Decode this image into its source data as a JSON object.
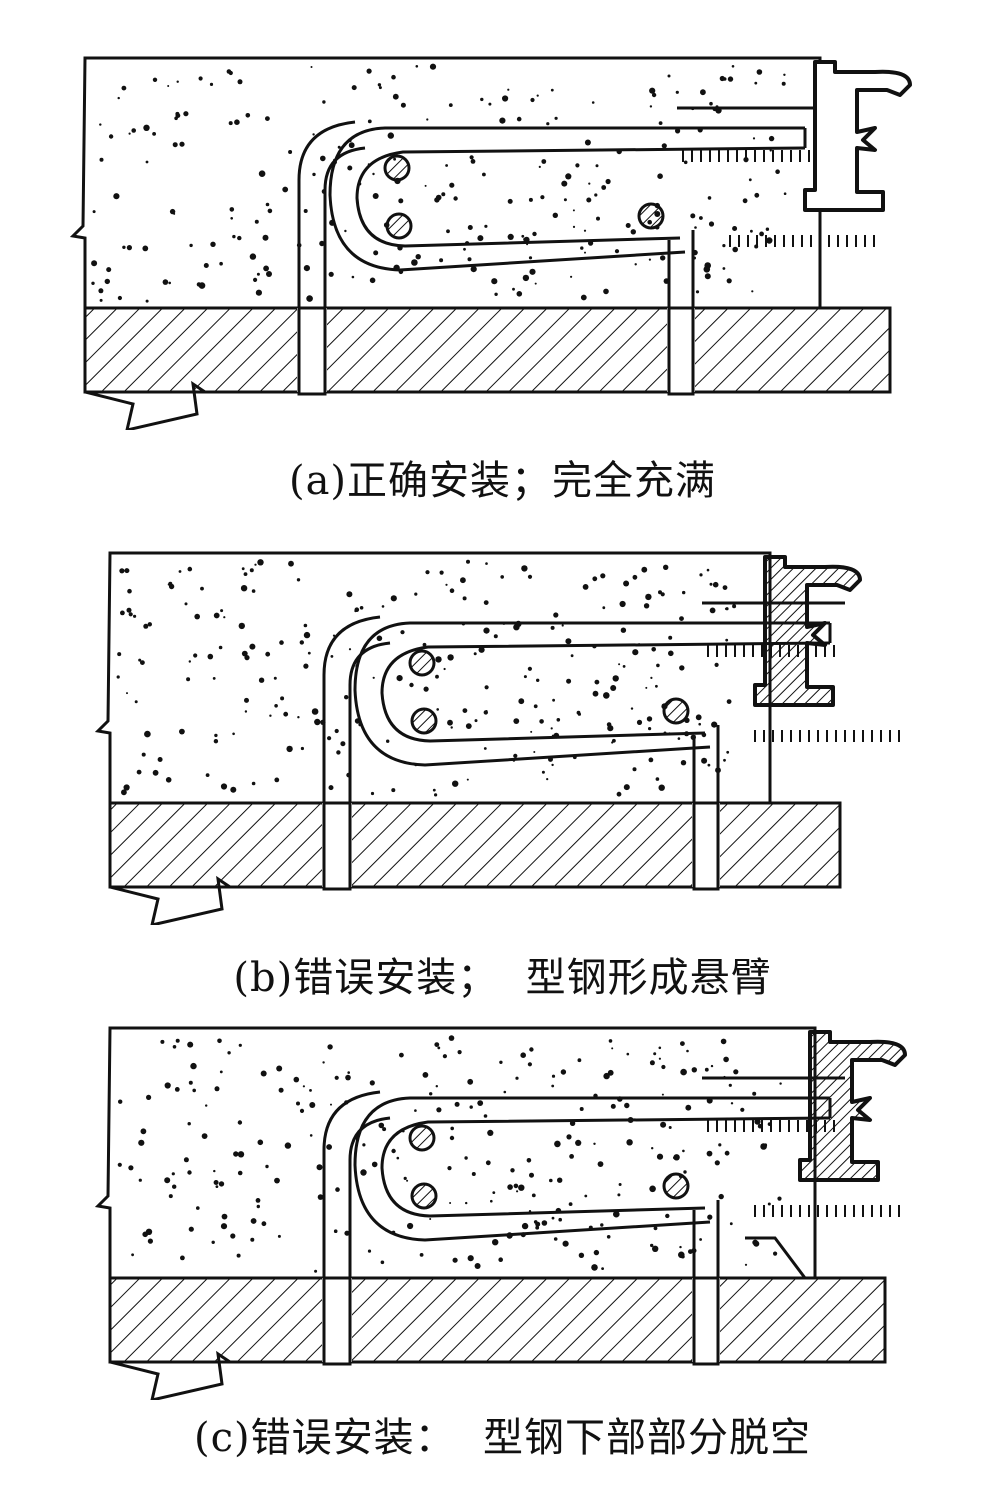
{
  "figure": {
    "panels": [
      {
        "id": "a",
        "caption": "(a)正确安装；完全充满",
        "variant": "correct-full"
      },
      {
        "id": "b",
        "caption": "(b)错误安装；  型钢形成悬臂",
        "variant": "cantilever"
      },
      {
        "id": "c",
        "caption": "(c)错误安装：  型钢下部部分脱空",
        "variant": "partial-void"
      }
    ],
    "colors": {
      "ink": "#111111",
      "paper": "#ffffff"
    }
  }
}
